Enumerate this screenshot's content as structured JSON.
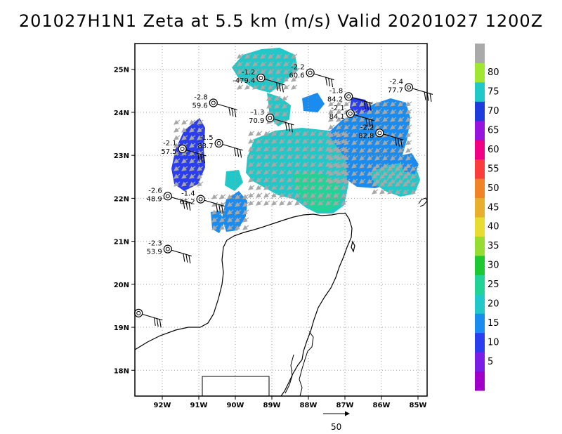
{
  "title": "201027H1N1 Zeta at 5.5 km (m/s) Valid 20201027 1200Z",
  "map": {
    "lon_range": [
      -92.75,
      -84.75
    ],
    "lat_range": [
      17.4,
      25.6
    ],
    "lon_ticks": [
      {
        "value": -92,
        "label": "92W"
      },
      {
        "value": -91,
        "label": "91W"
      },
      {
        "value": -90,
        "label": "90W"
      },
      {
        "value": -89,
        "label": "89W"
      },
      {
        "value": -88,
        "label": "88W"
      },
      {
        "value": -87,
        "label": "87W"
      },
      {
        "value": -86,
        "label": "86W"
      },
      {
        "value": -85,
        "label": "85W"
      }
    ],
    "lat_ticks": [
      {
        "value": 18,
        "label": "18N"
      },
      {
        "value": 19,
        "label": "19N"
      },
      {
        "value": 20,
        "label": "20N"
      },
      {
        "value": 21,
        "label": "21N"
      },
      {
        "value": 22,
        "label": "22N"
      },
      {
        "value": 23,
        "label": "23N"
      },
      {
        "value": 24,
        "label": "24N"
      },
      {
        "value": 25,
        "label": "25N"
      }
    ],
    "grid": "dotted"
  },
  "colorbar": {
    "levels": [
      {
        "label": "",
        "color": "#a000c8"
      },
      {
        "label": "5",
        "color": "#7a1ee6"
      },
      {
        "label": "10",
        "color": "#2a3ef0"
      },
      {
        "label": "15",
        "color": "#1a8cf0"
      },
      {
        "label": "20",
        "color": "#22c8c8"
      },
      {
        "label": "25",
        "color": "#22d296"
      },
      {
        "label": "30",
        "color": "#1ec832"
      },
      {
        "label": "35",
        "color": "#96dc32"
      },
      {
        "label": "40",
        "color": "#e6dc32"
      },
      {
        "label": "45",
        "color": "#e6af2d"
      },
      {
        "label": "50",
        "color": "#f08228"
      },
      {
        "label": "55",
        "color": "#fa3c3c"
      },
      {
        "label": "60",
        "color": "#f00082"
      },
      {
        "label": "65",
        "color": "#9614dc"
      },
      {
        "label": "70",
        "color": "#1e3cdc"
      },
      {
        "label": "75",
        "color": "#20c8c8"
      },
      {
        "label": "80",
        "color": "#a0e632"
      },
      {
        "label": "",
        "color": "#aaaaaa"
      }
    ]
  },
  "stations": [
    {
      "lon": -89.3,
      "lat": 24.8,
      "top": "-1.2",
      "bottom": "-479.4"
    },
    {
      "lon": -87.95,
      "lat": 24.92,
      "top": "-2.2",
      "bottom": "60.6"
    },
    {
      "lon": -85.25,
      "lat": 24.58,
      "top": "-2.4",
      "bottom": "77.7"
    },
    {
      "lon": -90.6,
      "lat": 24.22,
      "top": "-2.8",
      "bottom": "59.6"
    },
    {
      "lon": -86.9,
      "lat": 24.37,
      "top": "-1.8",
      "bottom": "84.2"
    },
    {
      "lon": -89.05,
      "lat": 23.87,
      "top": "-1.3",
      "bottom": "70.9"
    },
    {
      "lon": -86.85,
      "lat": 23.97,
      "top": "-2.1",
      "bottom": "84.1"
    },
    {
      "lon": -86.05,
      "lat": 23.52,
      "top": "-2.2",
      "bottom": "82.8"
    },
    {
      "lon": -90.45,
      "lat": 23.28,
      "top": "-1.5",
      "bottom": "83.7"
    },
    {
      "lon": -91.45,
      "lat": 23.15,
      "top": "-2.1",
      "bottom": "57.5"
    },
    {
      "lon": -91.85,
      "lat": 22.05,
      "top": "-2.6",
      "bottom": "48.9"
    },
    {
      "lon": -90.95,
      "lat": 21.98,
      "top": "-1.4",
      "bottom": "65.2"
    },
    {
      "lon": -91.85,
      "lat": 20.82,
      "top": "-2.3",
      "bottom": "53.9"
    },
    {
      "lon": -92.65,
      "lat": 19.33,
      "top": "",
      "bottom": ""
    }
  ],
  "reference_vector": {
    "label": "50"
  },
  "colors": {
    "frame": "#000000",
    "coast": "#000000",
    "grid": "#a0a0a0",
    "arrow": "#a8a8a8"
  }
}
